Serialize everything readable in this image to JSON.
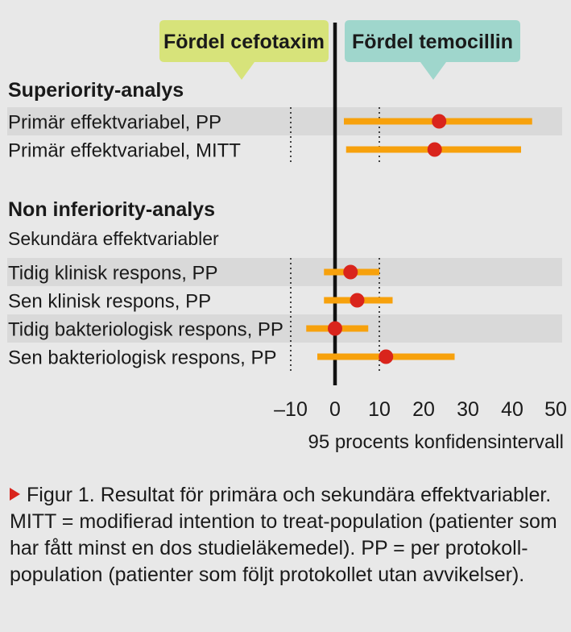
{
  "chart_data": {
    "type": "forest",
    "badges": {
      "left": "Fördel cefotaxim",
      "right": "Fördel temocillin"
    },
    "colors": {
      "badge_left": "#d7e37a",
      "badge_right": "#9fd6cc",
      "ci_bar": "#f7a10c",
      "point": "#d9241c",
      "row_band": "#d9d9d9"
    },
    "sections": [
      {
        "title": "Superiority-analys",
        "subtitle": "",
        "rows": [
          {
            "label": "Primär effektvariabel, PP",
            "estimate": 23.5,
            "lower": 2,
            "upper": 44.5
          },
          {
            "label": "Primär effektvariabel, MITT",
            "estimate": 22.5,
            "lower": 2.5,
            "upper": 42
          }
        ]
      },
      {
        "title": "Non inferiority-analys",
        "subtitle": "Sekundära effektvariabler",
        "rows": [
          {
            "label": "Tidig klinisk respons, PP",
            "estimate": 3.5,
            "lower": -2.5,
            "upper": 10
          },
          {
            "label": "Sen klinisk respons, PP",
            "estimate": 5,
            "lower": -2.5,
            "upper": 13
          },
          {
            "label": "Tidig bakteriologisk respons, PP",
            "estimate": 0,
            "lower": -6.5,
            "upper": 7.5
          },
          {
            "label": "Sen bakteriologisk respons, PP",
            "estimate": 11.5,
            "lower": -4,
            "upper": 27
          }
        ]
      }
    ],
    "xaxis": {
      "ticks": [
        -10,
        0,
        10,
        20,
        30,
        40,
        50
      ],
      "tick_labels": [
        "–10",
        "0",
        "10",
        "20",
        "30",
        "40",
        "50"
      ],
      "label": "95 procents konfidensintervall",
      "range": [
        -12,
        50
      ]
    },
    "reference_lines": [
      {
        "value": 0,
        "style": "solid"
      },
      {
        "value": -10,
        "style": "dotted"
      },
      {
        "value": 10,
        "style": "dotted"
      }
    ]
  },
  "caption": {
    "text": "Figur 1. Resultat för primära och sekundära effektvariabler. MITT = modifierad intention to treat-population (patienter som har fått minst en dos studieläkemedel). PP = per protokoll-population (patienter som följt protokollet utan avvikelser)."
  }
}
